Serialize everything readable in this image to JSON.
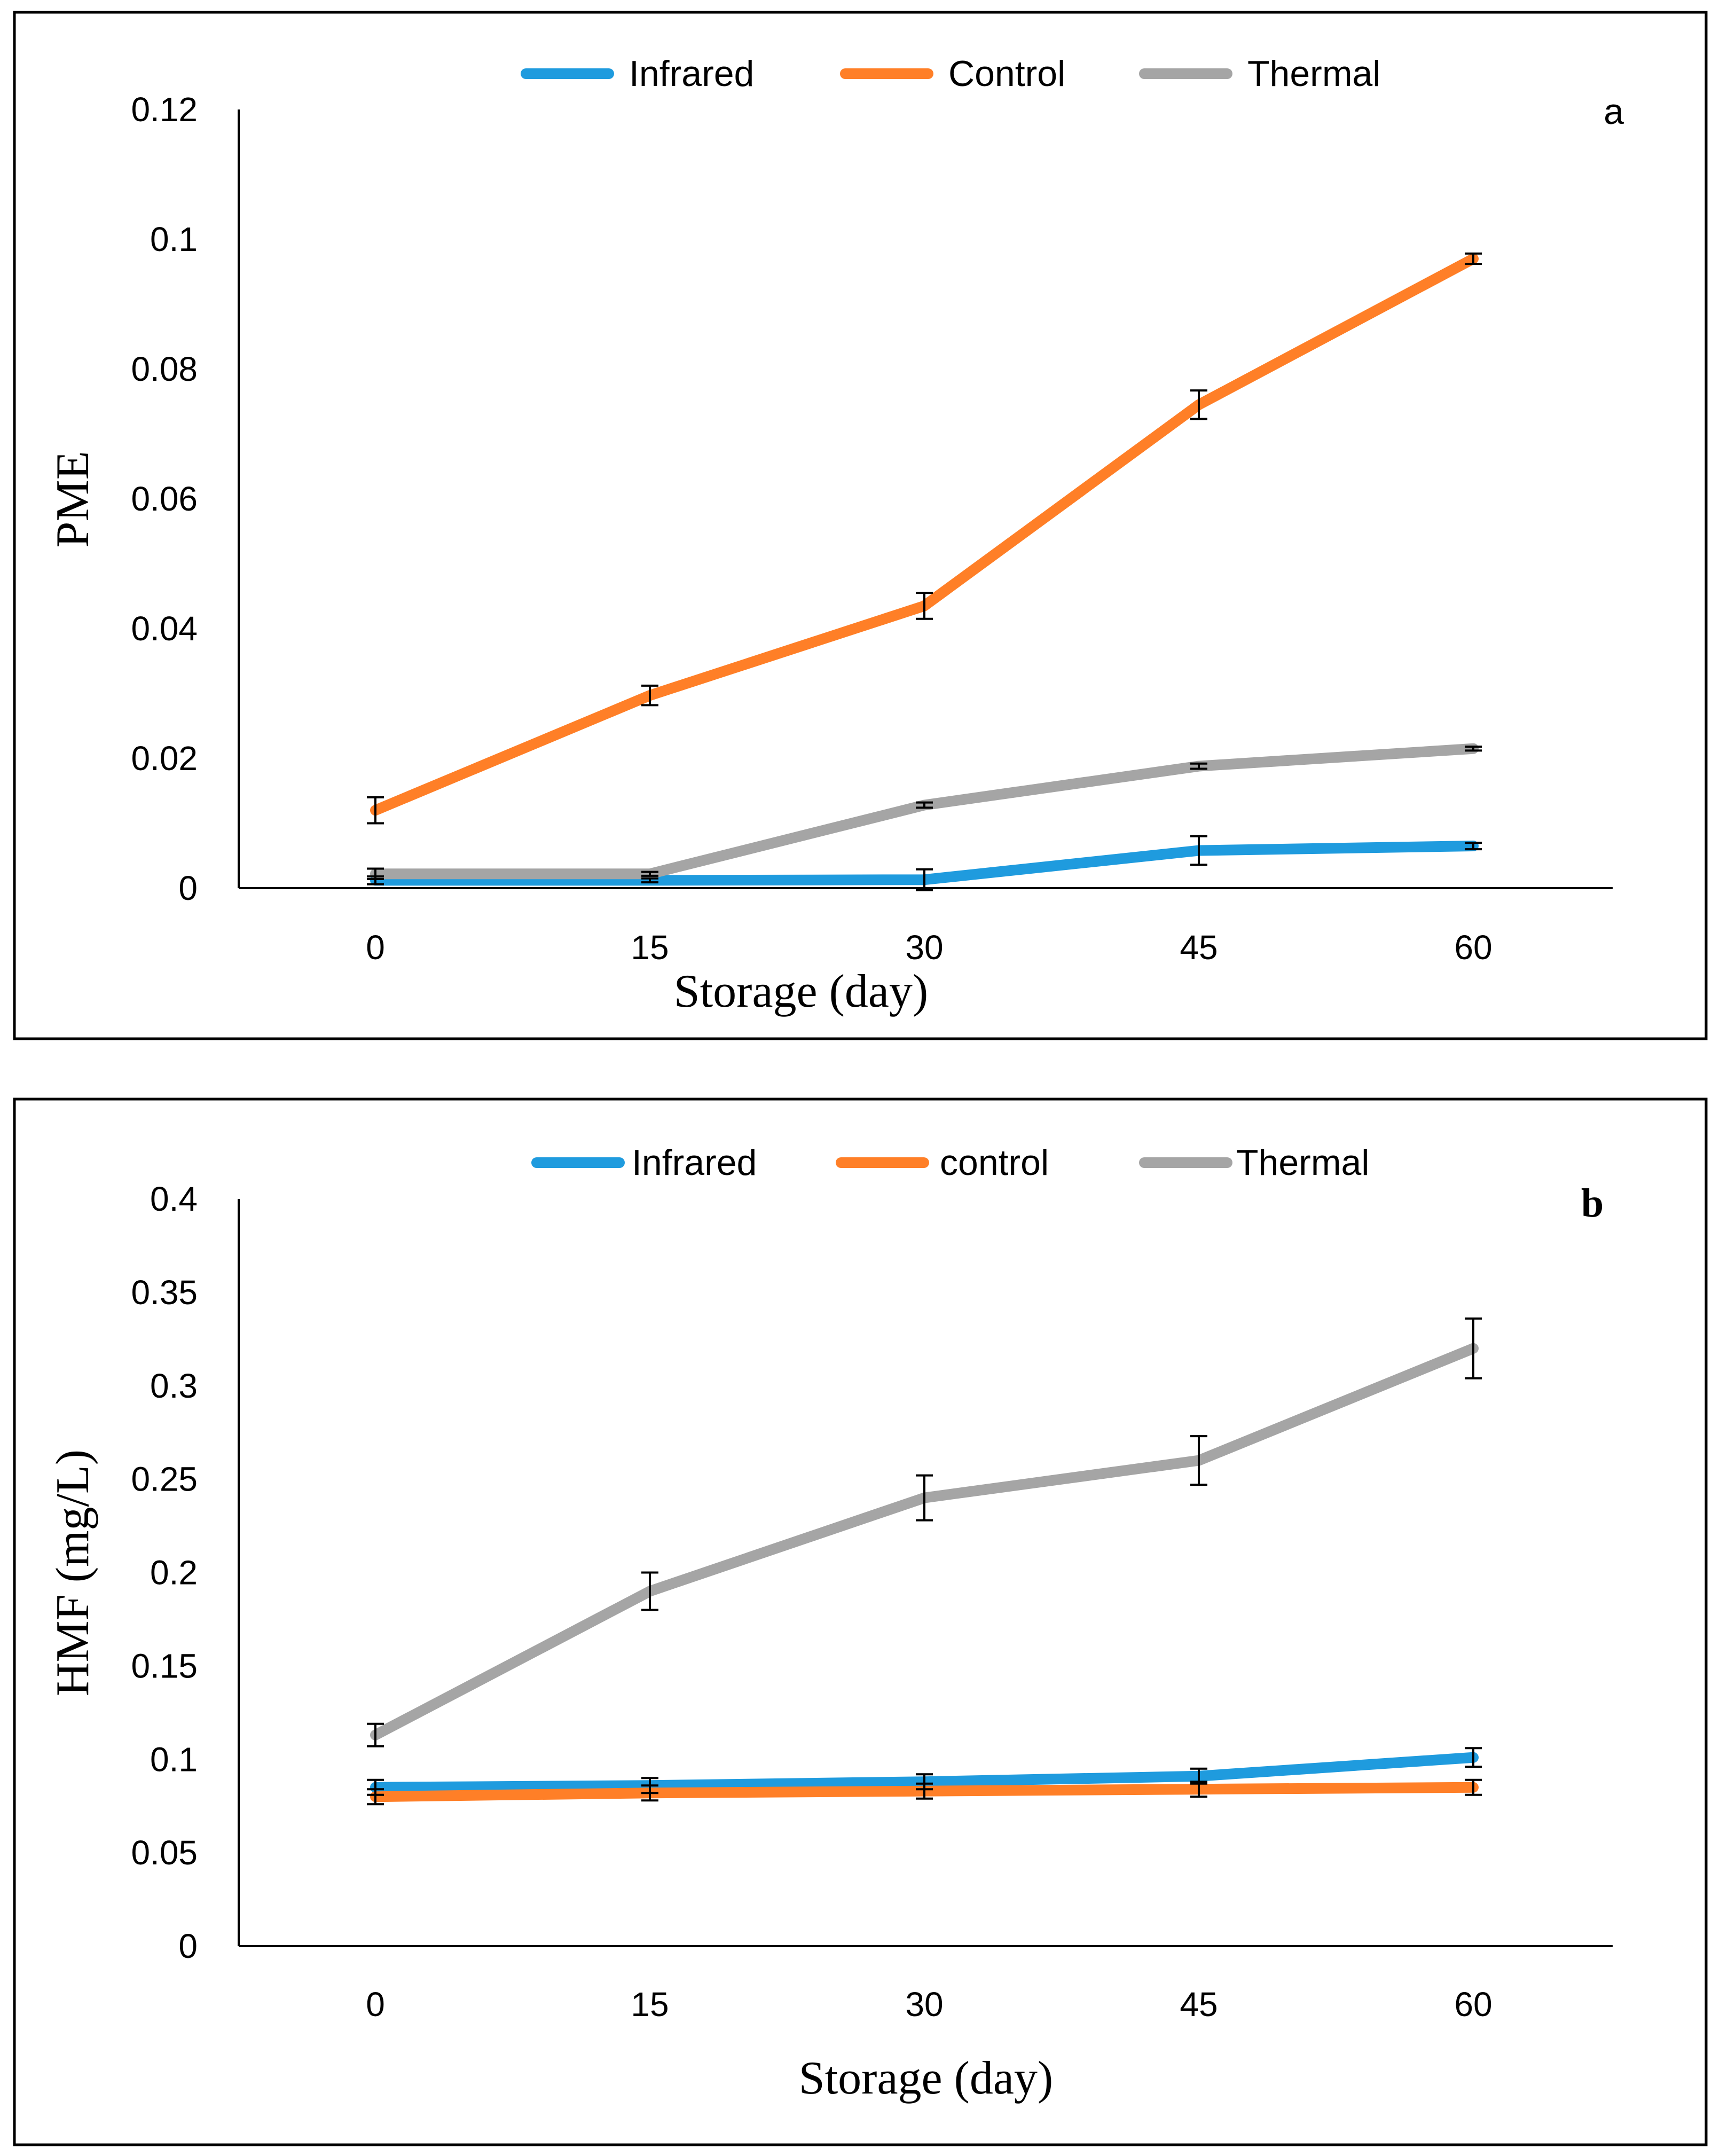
{
  "chart_data": [
    {
      "type": "line",
      "panel_label": "a",
      "title": "",
      "xlabel": "Storage (day)",
      "ylabel": "PME",
      "categories": [
        "0",
        "15",
        "30",
        "45",
        "60"
      ],
      "ylim": [
        0,
        0.12
      ],
      "yticks": [
        "0",
        "0.02",
        "0.04",
        "0.06",
        "0.08",
        "0.1",
        "0.12"
      ],
      "yticks_values": [
        0,
        0.02,
        0.04,
        0.06,
        0.08,
        0.1,
        0.12
      ],
      "legend_position": "top",
      "series": [
        {
          "name": "Infrared",
          "color": "#1f9bde",
          "values": [
            0.0012,
            0.0012,
            0.0013,
            0.0058,
            0.0065
          ],
          "errors": [
            0.0006,
            0.0003,
            0.0016,
            0.0022,
            0.0005
          ]
        },
        {
          "name": "Control",
          "color": "#ff7f27",
          "values": [
            0.012,
            0.0297,
            0.0435,
            0.0745,
            0.097
          ],
          "errors": [
            0.002,
            0.0015,
            0.002,
            0.0022,
            0.0008
          ]
        },
        {
          "name": "Thermal",
          "color": "#a5a5a5",
          "values": [
            0.0022,
            0.0022,
            0.0128,
            0.0188,
            0.0215
          ],
          "errors": [
            0.0008,
            0.0003,
            0.0004,
            0.0004,
            0.0003
          ]
        }
      ]
    },
    {
      "type": "line",
      "panel_label": "b",
      "title": "",
      "xlabel": "Storage (day)",
      "ylabel": "HMF (mg/L)",
      "categories": [
        "0",
        "15",
        "30",
        "45",
        "60"
      ],
      "ylim": [
        0,
        0.4
      ],
      "yticks": [
        "0",
        "0.05",
        "0.1",
        "0.15",
        "0.2",
        "0.25",
        "0.3",
        "0.35",
        "0.4"
      ],
      "yticks_values": [
        0,
        0.05,
        0.1,
        0.15,
        0.2,
        0.25,
        0.3,
        0.35,
        0.4
      ],
      "legend_position": "top",
      "series": [
        {
          "name": "Infrared",
          "color": "#1f9bde",
          "values": [
            0.085,
            0.086,
            0.088,
            0.091,
            0.101
          ],
          "errors": [
            0.004,
            0.004,
            0.004,
            0.004,
            0.005
          ]
        },
        {
          "name": "control",
          "color": "#ff7f27",
          "values": [
            0.08,
            0.082,
            0.083,
            0.084,
            0.085
          ],
          "errors": [
            0.004,
            0.004,
            0.004,
            0.004,
            0.004
          ]
        },
        {
          "name": "Thermal",
          "color": "#a5a5a5",
          "values": [
            0.113,
            0.19,
            0.24,
            0.26,
            0.32
          ],
          "errors": [
            0.006,
            0.01,
            0.012,
            0.013,
            0.016
          ]
        }
      ]
    }
  ]
}
